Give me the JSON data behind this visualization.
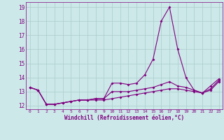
{
  "title": "",
  "xlabel": "Windchill (Refroidissement éolien,°C)",
  "ylabel": "",
  "background_color": "#cce8e8",
  "line_color": "#800080",
  "grid_color": "#aacccc",
  "xlim": [
    -0.5,
    23.5
  ],
  "ylim": [
    11.75,
    19.35
  ],
  "xticks": [
    0,
    1,
    2,
    3,
    4,
    5,
    6,
    7,
    8,
    9,
    10,
    11,
    12,
    13,
    14,
    15,
    16,
    17,
    18,
    19,
    20,
    21,
    22,
    23
  ],
  "yticks": [
    12,
    13,
    14,
    15,
    16,
    17,
    18,
    19
  ],
  "series": [
    [
      13.3,
      13.1,
      12.1,
      12.1,
      12.2,
      12.3,
      12.4,
      12.4,
      12.5,
      12.5,
      13.6,
      13.6,
      13.5,
      13.6,
      14.2,
      15.3,
      18.0,
      19.0,
      16.0,
      14.0,
      13.1,
      12.9,
      13.4,
      13.9
    ],
    [
      13.3,
      13.1,
      12.1,
      12.1,
      12.2,
      12.3,
      12.4,
      12.4,
      12.5,
      12.5,
      13.0,
      13.0,
      13.0,
      13.1,
      13.2,
      13.3,
      13.5,
      13.7,
      13.4,
      13.3,
      13.1,
      12.9,
      13.2,
      13.8
    ],
    [
      13.3,
      13.1,
      12.1,
      12.1,
      12.2,
      12.3,
      12.4,
      12.4,
      12.4,
      12.4,
      12.5,
      12.6,
      12.7,
      12.8,
      12.9,
      13.0,
      13.1,
      13.2,
      13.2,
      13.1,
      13.0,
      12.9,
      13.1,
      13.7
    ]
  ]
}
